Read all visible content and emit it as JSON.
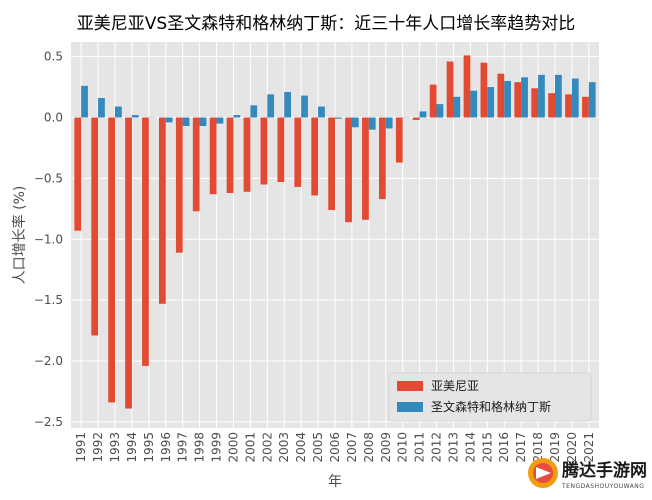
{
  "chart_data": {
    "type": "bar",
    "title": "亚美尼亚VS圣文森特和格林纳丁斯：近三十年人口增长率趋势对比",
    "xlabel": "年",
    "ylabel": "人口增长率 (%)",
    "ylim": [
      -2.55,
      0.62
    ],
    "yticks": [
      0.5,
      0.0,
      -0.5,
      -1.0,
      -1.5,
      -2.0,
      -2.5
    ],
    "ytick_labels": [
      "0.5",
      "0.0",
      "−0.5",
      "−1.0",
      "−1.5",
      "−2.0",
      "−2.5"
    ],
    "categories": [
      "1991",
      "1992",
      "1993",
      "1994",
      "1995",
      "1996",
      "1997",
      "1998",
      "1999",
      "2000",
      "2001",
      "2002",
      "2003",
      "2004",
      "2005",
      "2006",
      "2007",
      "2008",
      "2009",
      "2010",
      "2011",
      "2012",
      "2013",
      "2014",
      "2015",
      "2016",
      "2017",
      "2018",
      "2019",
      "2020",
      "2021"
    ],
    "series": [
      {
        "name": "亚美尼亚",
        "color": "#e24a33",
        "values": [
          -0.93,
          -1.79,
          -2.34,
          -2.39,
          -2.04,
          -1.53,
          -1.11,
          -0.77,
          -0.63,
          -0.62,
          -0.61,
          -0.55,
          -0.53,
          -0.57,
          -0.64,
          -0.76,
          -0.86,
          -0.84,
          -0.67,
          -0.37,
          -0.02,
          0.27,
          0.46,
          0.51,
          0.45,
          0.36,
          0.29,
          0.24,
          0.2,
          0.19,
          0.17
        ]
      },
      {
        "name": "圣文森特和格林纳丁斯",
        "color": "#348abd",
        "values": [
          0.26,
          0.16,
          0.09,
          0.02,
          0.0,
          -0.04,
          -0.07,
          -0.07,
          -0.05,
          0.02,
          0.1,
          0.19,
          0.21,
          0.18,
          0.09,
          -0.01,
          -0.08,
          -0.1,
          -0.09,
          0.0,
          0.05,
          0.11,
          0.17,
          0.22,
          0.25,
          0.3,
          0.33,
          0.35,
          0.35,
          0.32,
          0.29
        ]
      }
    ],
    "grid": true,
    "legend_position": "lower-right"
  },
  "watermark": {
    "text": "腾达手游网",
    "subtext": "TENGDASHOUYOUWANG"
  }
}
